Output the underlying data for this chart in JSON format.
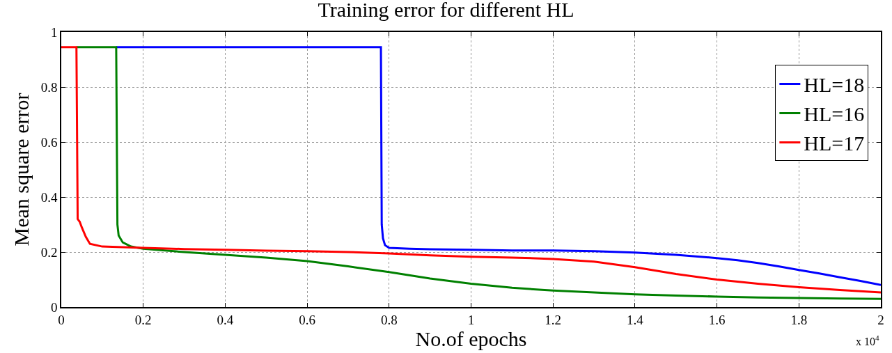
{
  "chart_data": {
    "type": "line",
    "title": "Training error for different HL",
    "xlabel": "No.of epochs",
    "ylabel": "Mean square error",
    "annotations": [
      "x 10$^{4}$"
    ],
    "xlim": [
      0,
      2
    ],
    "xticks": [
      0,
      0.2,
      0.4,
      0.6,
      0.8,
      1,
      1.2,
      1.4,
      1.6,
      1.8,
      2
    ],
    "ylim": [
      0,
      1
    ],
    "yticks": [
      0,
      0.2,
      0.4,
      0.6,
      0.8,
      1
    ],
    "grid": true,
    "legend": "top right",
    "marker": "none",
    "line_style": "solid",
    "series": [
      {
        "name": "HL=18",
        "color": "#0000ff",
        "x": [
          0.134,
          0.78,
          0.782,
          0.785,
          0.79,
          0.8,
          0.85,
          0.9,
          1.0,
          1.1,
          1.2,
          1.3,
          1.4,
          1.5,
          1.6,
          1.65,
          1.7,
          1.75,
          1.8,
          1.85,
          1.9,
          1.95,
          2.0
        ],
        "values": [
          0.945,
          0.945,
          0.3,
          0.25,
          0.225,
          0.215,
          0.212,
          0.21,
          0.208,
          0.206,
          0.206,
          0.203,
          0.198,
          0.19,
          0.178,
          0.17,
          0.16,
          0.148,
          0.135,
          0.122,
          0.108,
          0.095,
          0.08
        ]
      },
      {
        "name": "HL=16",
        "color": "#008000",
        "x": [
          0.037,
          0.134,
          0.137,
          0.14,
          0.15,
          0.17,
          0.2,
          0.3,
          0.4,
          0.5,
          0.6,
          0.7,
          0.8,
          0.9,
          1.0,
          1.1,
          1.2,
          1.3,
          1.4,
          1.5,
          1.6,
          1.7,
          1.8,
          1.9,
          2.0
        ],
        "values": [
          0.945,
          0.945,
          0.3,
          0.26,
          0.235,
          0.22,
          0.212,
          0.2,
          0.19,
          0.18,
          0.167,
          0.148,
          0.127,
          0.104,
          0.085,
          0.07,
          0.06,
          0.053,
          0.046,
          0.042,
          0.038,
          0.035,
          0.033,
          0.031,
          0.03
        ]
      },
      {
        "name": "HL=17",
        "color": "#ff0000",
        "x": [
          0,
          0.037,
          0.04,
          0.045,
          0.05,
          0.06,
          0.07,
          0.1,
          0.2,
          0.3,
          0.4,
          0.5,
          0.6,
          0.7,
          0.8,
          0.9,
          1.0,
          1.1,
          1.2,
          1.3,
          1.4,
          1.5,
          1.6,
          1.7,
          1.8,
          1.9,
          2.0
        ],
        "values": [
          0.945,
          0.945,
          0.32,
          0.31,
          0.29,
          0.255,
          0.23,
          0.22,
          0.215,
          0.211,
          0.208,
          0.205,
          0.203,
          0.2,
          0.195,
          0.188,
          0.183,
          0.18,
          0.175,
          0.165,
          0.145,
          0.12,
          0.1,
          0.085,
          0.072,
          0.062,
          0.053
        ]
      }
    ]
  }
}
